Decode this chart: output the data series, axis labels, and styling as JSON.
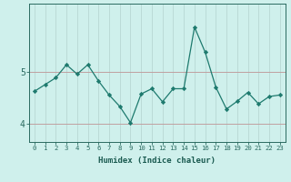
{
  "x": [
    0,
    1,
    2,
    3,
    4,
    5,
    6,
    7,
    8,
    9,
    10,
    11,
    12,
    13,
    14,
    15,
    16,
    17,
    18,
    19,
    20,
    21,
    22,
    23
  ],
  "y": [
    4.62,
    4.75,
    4.88,
    5.13,
    4.95,
    5.13,
    4.82,
    4.55,
    4.33,
    4.02,
    4.57,
    4.67,
    4.42,
    4.67,
    4.67,
    5.85,
    5.37,
    4.7,
    4.28,
    4.43,
    4.6,
    4.38,
    4.52,
    4.55
  ],
  "line_color": "#1e7a6e",
  "marker_color": "#1e7a6e",
  "bg_color": "#cff0ec",
  "grid_color_x": "#b8d8d4",
  "grid_color_y": "#c0a0a0",
  "xlabel": "Humidex (Indice chaleur)",
  "ylim": [
    3.65,
    6.3
  ],
  "xlim": [
    -0.5,
    23.5
  ],
  "yticks": [
    4,
    5
  ],
  "xticks": [
    0,
    1,
    2,
    3,
    4,
    5,
    6,
    7,
    8,
    9,
    10,
    11,
    12,
    13,
    14,
    15,
    16,
    17,
    18,
    19,
    20,
    21,
    22,
    23
  ],
  "xtick_labels": [
    "0",
    "1",
    "2",
    "3",
    "4",
    "5",
    "6",
    "7",
    "8",
    "9",
    "10",
    "11",
    "12",
    "13",
    "14",
    "15",
    "16",
    "17",
    "18",
    "19",
    "20",
    "21",
    "22",
    "23"
  ],
  "tick_color": "#2a6a60",
  "font_color": "#1a5a50",
  "xlabel_fontsize": 6.5,
  "xtick_fontsize": 5.2,
  "ytick_fontsize": 7.0
}
